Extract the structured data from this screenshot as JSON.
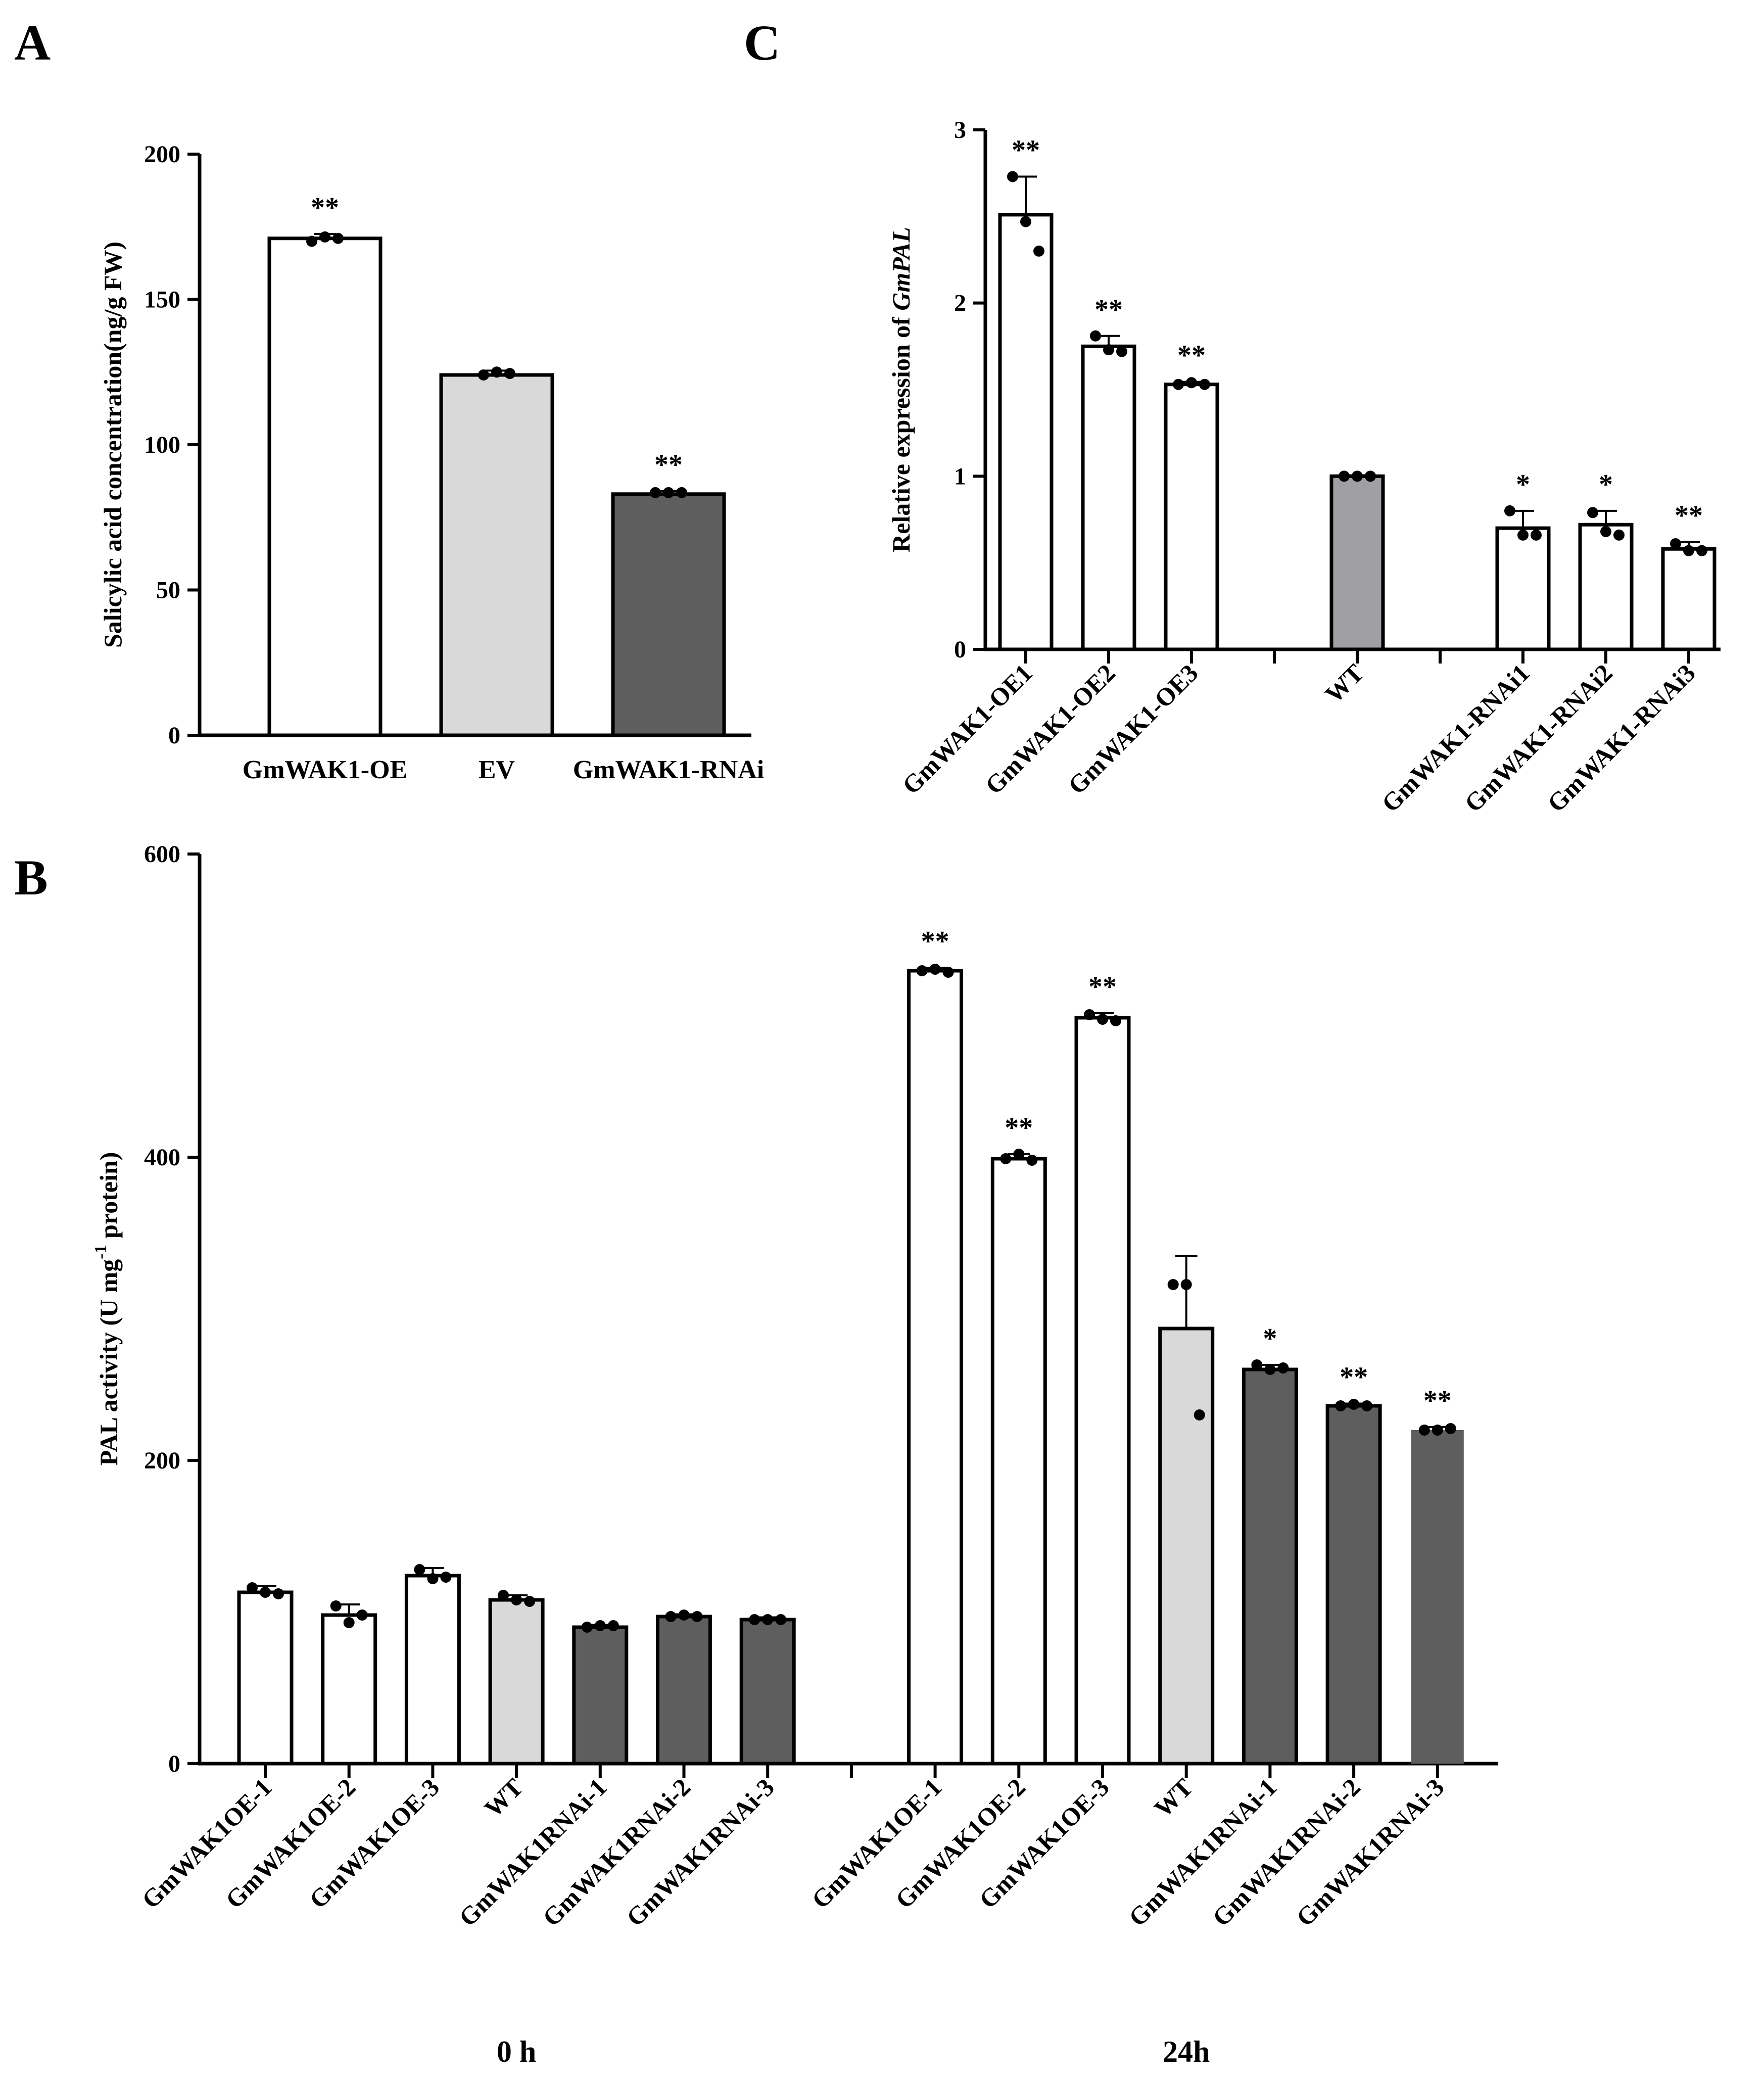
{
  "panel_letters": {
    "a": "A",
    "b": "B",
    "c": "C"
  },
  "colors": {
    "oe": "#ffffff",
    "ev": "#d9d9d9",
    "rnai": "#5e5e5e",
    "wt_c": "#a0a0a4",
    "axis": "#000000",
    "point": "#000000"
  },
  "chart_data": [
    {
      "id": "A",
      "type": "bar",
      "ylabel": "Salicylic acid concentration(ng/g FW)",
      "ylim": [
        0,
        200
      ],
      "yticks": [
        0,
        50,
        100,
        150,
        200
      ],
      "categories": [
        "GmWAK1-OE",
        "EV",
        "GmWAK1-RNAi"
      ],
      "values": [
        171,
        124,
        83
      ],
      "errors": [
        1.5,
        1.5,
        1
      ],
      "points": [
        [
          170,
          171.5,
          171
        ],
        [
          124,
          125,
          124.5
        ],
        [
          83.5,
          83.5,
          83.5
        ]
      ],
      "fills": [
        "oe",
        "ev",
        "rnai"
      ],
      "significance": [
        "**",
        "",
        "**"
      ]
    },
    {
      "id": "C",
      "type": "bar",
      "ylabel_prefix": "Relative expression of ",
      "ylabel_gene": "GmPAL",
      "ylim": [
        0,
        3
      ],
      "yticks": [
        0,
        1,
        2,
        3
      ],
      "categories": [
        "GmWAK1-OE1",
        "GmWAK1-OE2",
        "GmWAK1-OE3",
        "",
        "WT",
        "",
        "GmWAK1-RNAi1",
        "GmWAK1-RNAi2",
        "GmWAK1-RNAi3"
      ],
      "values": [
        2.51,
        1.75,
        1.53,
        null,
        1.0,
        null,
        0.7,
        0.72,
        0.58
      ],
      "errors": [
        0.22,
        0.06,
        0.015,
        null,
        0.005,
        null,
        0.1,
        0.08,
        0.04
      ],
      "points": [
        [
          2.73,
          2.47,
          2.3
        ],
        [
          1.81,
          1.73,
          1.72
        ],
        [
          1.53,
          1.54,
          1.53
        ],
        null,
        [
          1.0,
          1.0,
          1.0
        ],
        null,
        [
          0.8,
          0.66,
          0.66
        ],
        [
          0.79,
          0.68,
          0.66
        ],
        [
          0.61,
          0.57,
          0.57
        ]
      ],
      "fills": [
        "oe",
        "oe",
        "oe",
        null,
        "wt_c",
        null,
        "oe",
        "oe",
        "oe"
      ],
      "significance": [
        "**",
        "**",
        "**",
        "",
        "",
        "",
        "*",
        "*",
        "**"
      ]
    },
    {
      "id": "B",
      "type": "bar",
      "ylabel": "PAL activity (U mg-1 protein)",
      "ylabel_main": "PAL activity (U mg",
      "ylabel_sup": "-1",
      "ylabel_end": " protein)",
      "ylim": [
        0,
        600
      ],
      "yticks": [
        0,
        200,
        400,
        600
      ],
      "groups": [
        "0 h",
        "24h"
      ],
      "categories": [
        "GmWAK1OE-1",
        "GmWAK1OE-2",
        "GmWAK1OE-3",
        "WT",
        "GmWAK1RNAi-1",
        "GmWAK1RNAi-2",
        "GmWAK1RNAi-3",
        "",
        "GmWAK1OE-1",
        "GmWAK1OE-2",
        "GmWAK1OE-3",
        "WT",
        "GmWAK1RNAi-1",
        "GmWAK1RNAi-2",
        "GmWAK1RNAi-3"
      ],
      "values": [
        113,
        98,
        124,
        108,
        90,
        97,
        95,
        null,
        523,
        399,
        492,
        287,
        260,
        236,
        220
      ],
      "errors": [
        4,
        7,
        5,
        3,
        1.5,
        1.5,
        1.5,
        null,
        2,
        3,
        3,
        48,
        3,
        1.5,
        2
      ],
      "points": [
        [
          116,
          113,
          112
        ],
        [
          104,
          93,
          98
        ],
        [
          128,
          122,
          123
        ],
        [
          111,
          108,
          107
        ],
        [
          90,
          91,
          91
        ],
        [
          97,
          98,
          97
        ],
        [
          95,
          95,
          95
        ],
        null,
        [
          523,
          524,
          522
        ],
        [
          399,
          402,
          398
        ],
        [
          494,
          491,
          490
        ],
        [
          316,
          316,
          230
        ],
        [
          263,
          260,
          261
        ],
        [
          236,
          237,
          236
        ],
        [
          220,
          220,
          221
        ]
      ],
      "fills": [
        "oe",
        "oe",
        "oe",
        "ev",
        "rnai",
        "rnai",
        "rnai",
        null,
        "oe",
        "oe",
        "oe",
        "ev",
        "rnai",
        "rnai",
        "rnai"
      ],
      "significance": [
        "",
        "",
        "",
        "",
        "",
        "",
        "",
        "",
        "**",
        "**",
        "**",
        "",
        "*",
        "**",
        "**"
      ]
    }
  ]
}
